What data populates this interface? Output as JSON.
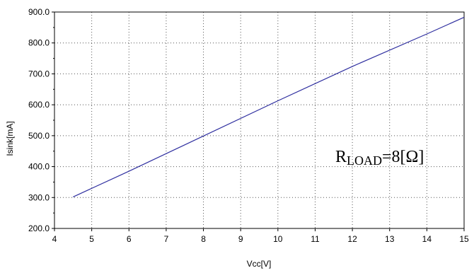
{
  "chart_data": {
    "type": "line",
    "xlabel": "Vcc[V]",
    "ylabel": "Isink[mA]",
    "xlim": [
      4,
      15
    ],
    "ylim": [
      200,
      900
    ],
    "x_ticks": [
      "4",
      "5",
      "6",
      "7",
      "8",
      "9",
      "10",
      "11",
      "12",
      "13",
      "14",
      "15"
    ],
    "y_ticks": [
      "200.0",
      "300.0",
      "400.0",
      "500.0",
      "600.0",
      "700.0",
      "800.0",
      "900.0"
    ],
    "grid": true,
    "series": [
      {
        "color": "#3030a0",
        "x": [
          4.5,
          6,
          8,
          10,
          12,
          14,
          15
        ],
        "y": [
          302,
          385,
          499,
          613,
          724,
          829,
          883
        ]
      }
    ],
    "annotation": {
      "prefix": "R",
      "subscript": "LOAD",
      "suffix": "=8[Ω]"
    }
  }
}
